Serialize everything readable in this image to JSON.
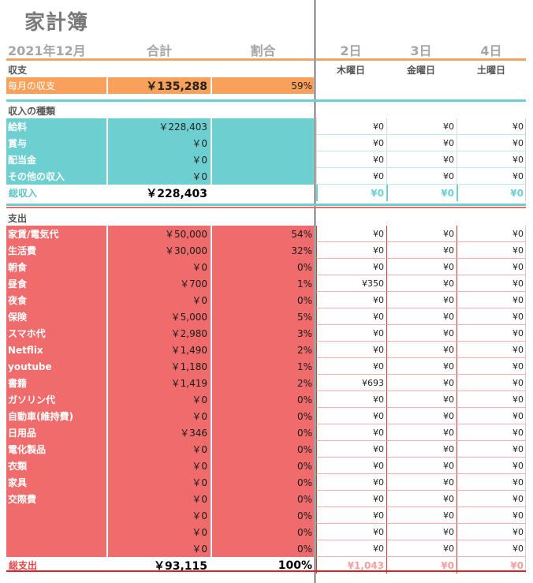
{
  "title": "家計簿",
  "header": {
    "month": "2021年12月",
    "total": "合計",
    "ratio": "割合",
    "days": [
      {
        "day": "2日",
        "weekday": "木曜日"
      },
      {
        "day": "3日",
        "weekday": "金曜日"
      },
      {
        "day": "4日",
        "weekday": "土曜日"
      }
    ]
  },
  "balance": {
    "section_label": "収支",
    "row": {
      "label": "毎月の収支",
      "total": "￥135,288",
      "ratio": "59%"
    }
  },
  "income": {
    "section_label": "収入の種類",
    "rows": [
      {
        "label": "給料",
        "total": "￥228,403",
        "d1": "¥0",
        "d2": "¥0",
        "d3": "¥0"
      },
      {
        "label": "賞与",
        "total": "￥0",
        "d1": "¥0",
        "d2": "¥0",
        "d3": "¥0"
      },
      {
        "label": "配当金",
        "total": "￥0",
        "d1": "¥0",
        "d2": "¥0",
        "d3": "¥0"
      },
      {
        "label": "その他の収入",
        "total": "￥0",
        "d1": "¥0",
        "d2": "¥0",
        "d3": "¥0"
      }
    ],
    "total": {
      "label": "総収入",
      "total": "￥228,403",
      "d1": "¥0",
      "d2": "¥0",
      "d3": "¥0"
    }
  },
  "expense": {
    "section_label": "支出",
    "rows": [
      {
        "label": "家賃/電気代",
        "total": "￥50,000",
        "ratio": "54%",
        "d1": "¥0",
        "d2": "¥0",
        "d3": "¥0"
      },
      {
        "label": "生活費",
        "total": "￥30,000",
        "ratio": "32%",
        "d1": "¥0",
        "d2": "¥0",
        "d3": "¥0"
      },
      {
        "label": "朝食",
        "total": "￥0",
        "ratio": "0%",
        "d1": "¥0",
        "d2": "¥0",
        "d3": "¥0"
      },
      {
        "label": "昼食",
        "total": "￥700",
        "ratio": "1%",
        "d1": "¥350",
        "d2": "¥0",
        "d3": "¥0"
      },
      {
        "label": "夜食",
        "total": "￥0",
        "ratio": "0%",
        "d1": "¥0",
        "d2": "¥0",
        "d3": "¥0"
      },
      {
        "label": "保険",
        "total": "￥5,000",
        "ratio": "5%",
        "d1": "¥0",
        "d2": "¥0",
        "d3": "¥0"
      },
      {
        "label": "スマホ代",
        "total": "￥2,980",
        "ratio": "3%",
        "d1": "¥0",
        "d2": "¥0",
        "d3": "¥0"
      },
      {
        "label": "Netflix",
        "total": "￥1,490",
        "ratio": "2%",
        "d1": "¥0",
        "d2": "¥0",
        "d3": "¥0"
      },
      {
        "label": "youtube",
        "total": "￥1,180",
        "ratio": "1%",
        "d1": "¥0",
        "d2": "¥0",
        "d3": "¥0"
      },
      {
        "label": "書籍",
        "total": "￥1,419",
        "ratio": "2%",
        "d1": "¥693",
        "d2": "¥0",
        "d3": "¥0"
      },
      {
        "label": "ガソリン代",
        "total": "￥0",
        "ratio": "0%",
        "d1": "¥0",
        "d2": "¥0",
        "d3": "¥0"
      },
      {
        "label": "自動車(維持費)",
        "total": "￥0",
        "ratio": "0%",
        "d1": "¥0",
        "d2": "¥0",
        "d3": "¥0"
      },
      {
        "label": "日用品",
        "total": "￥346",
        "ratio": "0%",
        "d1": "¥0",
        "d2": "¥0",
        "d3": "¥0"
      },
      {
        "label": "電化製品",
        "total": "￥0",
        "ratio": "0%",
        "d1": "¥0",
        "d2": "¥0",
        "d3": "¥0"
      },
      {
        "label": "衣類",
        "total": "￥0",
        "ratio": "0%",
        "d1": "¥0",
        "d2": "¥0",
        "d3": "¥0"
      },
      {
        "label": "家具",
        "total": "￥0",
        "ratio": "0%",
        "d1": "¥0",
        "d2": "¥0",
        "d3": "¥0"
      },
      {
        "label": "交際費",
        "total": "￥0",
        "ratio": "0%",
        "d1": "¥0",
        "d2": "¥0",
        "d3": "¥0"
      },
      {
        "label": "",
        "total": "￥0",
        "ratio": "0%",
        "d1": "¥0",
        "d2": "¥0",
        "d3": "¥0"
      },
      {
        "label": "",
        "total": "￥0",
        "ratio": "0%",
        "d1": "¥0",
        "d2": "¥0",
        "d3": "¥0"
      },
      {
        "label": "",
        "total": "￥0",
        "ratio": "0%",
        "d1": "¥0",
        "d2": "¥0",
        "d3": "¥0"
      }
    ],
    "total": {
      "label": "総支出",
      "total": "￥93,115",
      "ratio": "100%",
      "d1": "¥1,043",
      "d2": "¥0",
      "d3": "¥0"
    }
  },
  "colors": {
    "orange": "#f9a05a",
    "teal": "#6ecfd0",
    "red": "#f06c6c",
    "header_text": "#a6a6a6"
  }
}
